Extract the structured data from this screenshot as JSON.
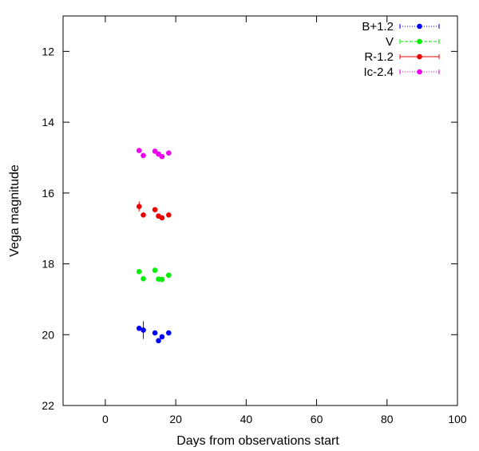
{
  "chart_data": {
    "type": "scatter",
    "xlabel": "Days from observations start",
    "ylabel": "Vega magnitude",
    "xlim": [
      -12,
      100
    ],
    "ylim": [
      22,
      11
    ],
    "y_inverted": true,
    "grid": false,
    "legend_position": "top-right",
    "x_ticks": [
      0,
      20,
      40,
      60,
      80,
      100
    ],
    "x_tick_labels": [
      "0",
      "20",
      "40",
      "60",
      "80",
      "100"
    ],
    "y_ticks": [
      12,
      14,
      16,
      18,
      20,
      22
    ],
    "y_tick_labels": [
      "12",
      "14",
      "16",
      "18",
      "20",
      "22"
    ],
    "series": [
      {
        "name": "B+1.2",
        "color": "#0000ff",
        "line_style": "dotted",
        "points": [
          {
            "x": 9.6,
            "y": 19.82,
            "err": 0.06
          },
          {
            "x": 10.8,
            "y": 19.87,
            "err": 0.25
          },
          {
            "x": 14.1,
            "y": 19.95,
            "err": 0.05
          },
          {
            "x": 15.1,
            "y": 20.17,
            "err": 0.05
          },
          {
            "x": 16.1,
            "y": 20.06,
            "err": 0.05
          },
          {
            "x": 18.0,
            "y": 19.95,
            "err": 0.04
          }
        ]
      },
      {
        "name": "V",
        "color": "#00ee00",
        "line_style": "dashed",
        "points": [
          {
            "x": 9.6,
            "y": 18.22,
            "err": 0.05
          },
          {
            "x": 10.8,
            "y": 18.42,
            "err": 0.05
          },
          {
            "x": 14.1,
            "y": 18.18,
            "err": 0.05
          },
          {
            "x": 15.1,
            "y": 18.43,
            "err": 0.05
          },
          {
            "x": 16.1,
            "y": 18.44,
            "err": 0.04
          },
          {
            "x": 18.0,
            "y": 18.32,
            "err": 0.04
          }
        ]
      },
      {
        "name": "R-1.2",
        "color": "#ee0000",
        "line_style": "solid",
        "points": [
          {
            "x": 9.6,
            "y": 16.38,
            "err": 0.14
          },
          {
            "x": 10.8,
            "y": 16.62,
            "err": 0.05
          },
          {
            "x": 14.1,
            "y": 16.47,
            "err": 0.05
          },
          {
            "x": 15.1,
            "y": 16.65,
            "err": 0.05
          },
          {
            "x": 16.1,
            "y": 16.7,
            "err": 0.04
          },
          {
            "x": 18.0,
            "y": 16.62,
            "err": 0.04
          }
        ]
      },
      {
        "name": "Ic-2.4",
        "color": "#ee00ee",
        "line_style": "dotted",
        "points": [
          {
            "x": 9.6,
            "y": 14.8,
            "err": 0.05
          },
          {
            "x": 10.8,
            "y": 14.94,
            "err": 0.05
          },
          {
            "x": 14.1,
            "y": 14.82,
            "err": 0.04
          },
          {
            "x": 15.1,
            "y": 14.9,
            "err": 0.04
          },
          {
            "x": 16.1,
            "y": 14.97,
            "err": 0.04
          },
          {
            "x": 18.0,
            "y": 14.87,
            "err": 0.04
          }
        ]
      }
    ]
  }
}
